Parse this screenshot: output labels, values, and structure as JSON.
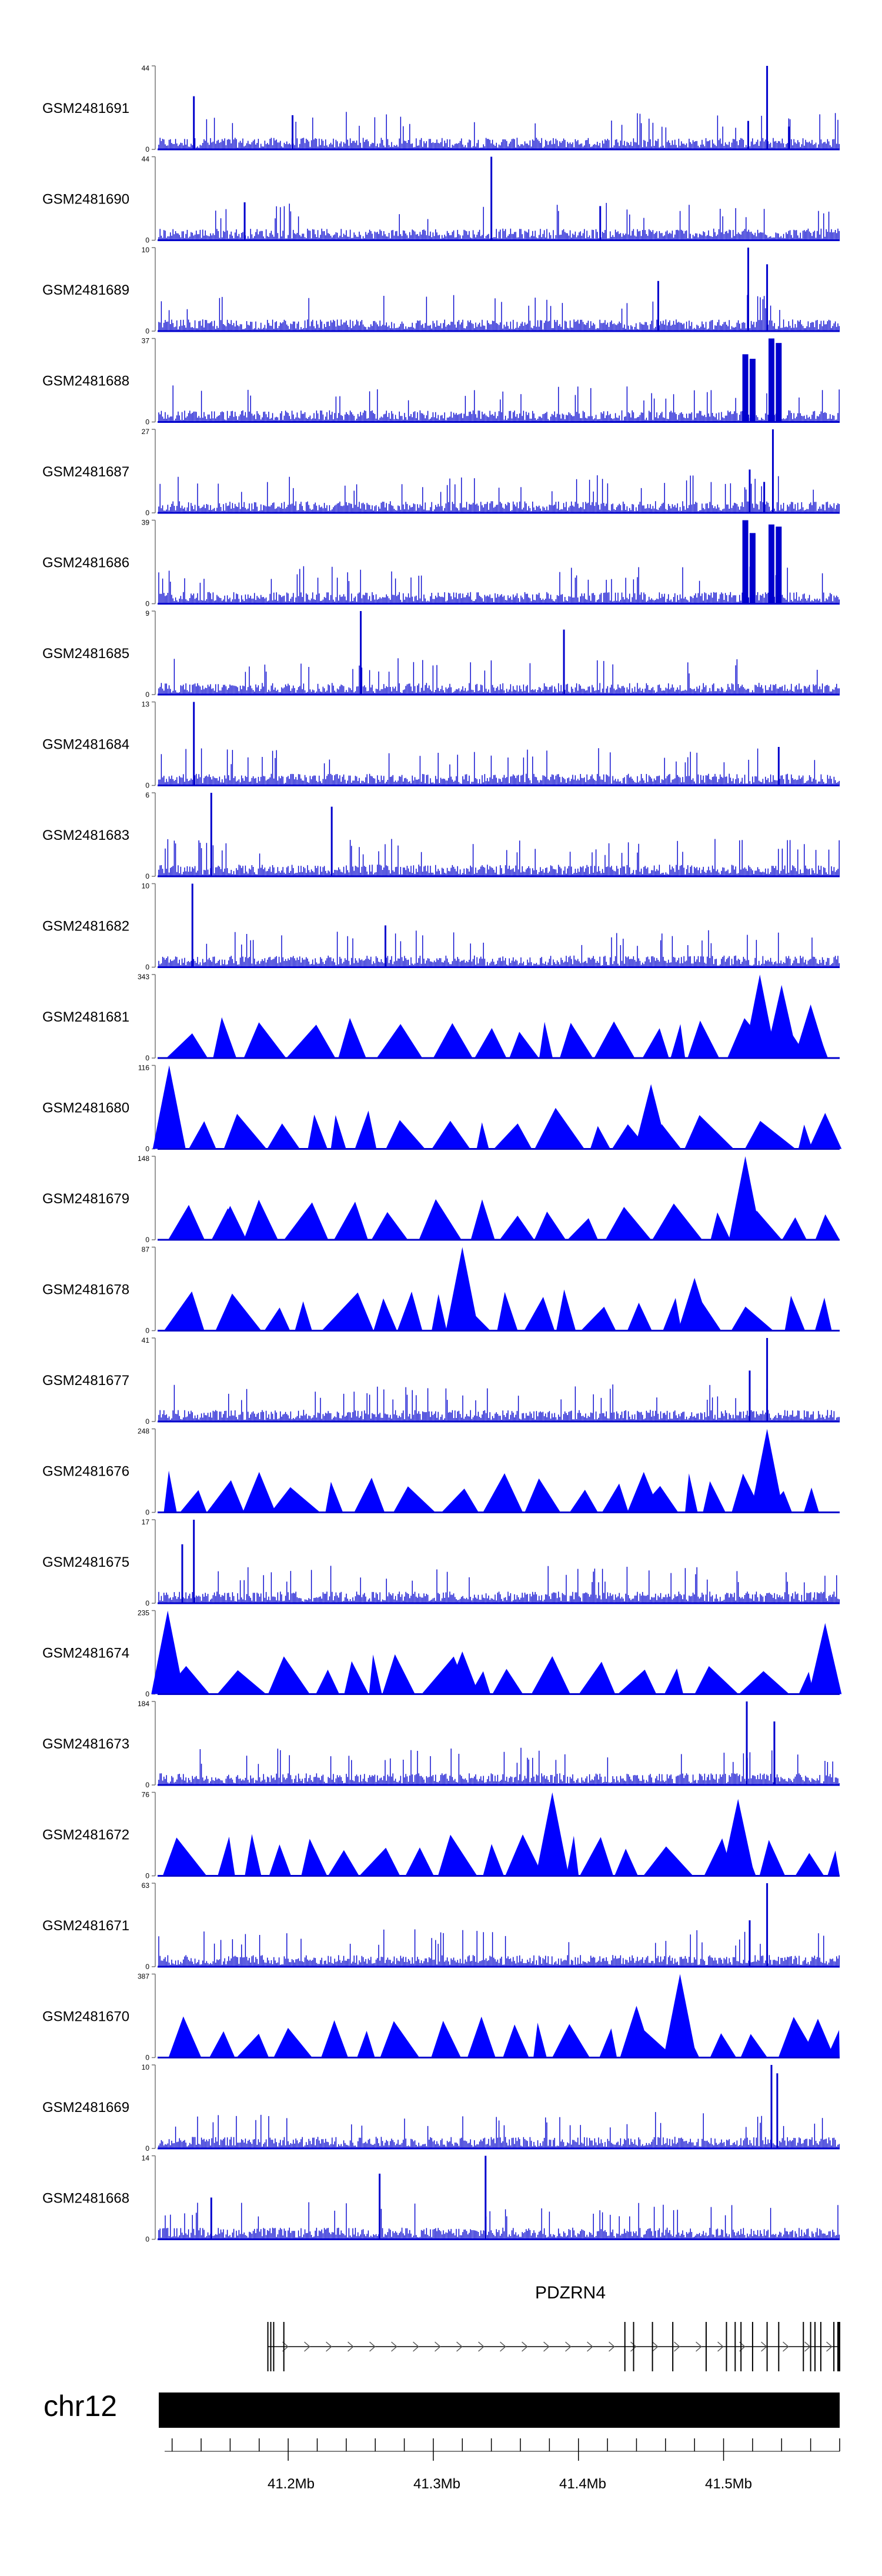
{
  "chart_data": {
    "type": "area",
    "title": "",
    "xlabel": "",
    "ylabel": "",
    "region": {
      "chromosome": "chr12",
      "start": 41110000,
      "end": 41580000
    },
    "tracks": [
      {
        "sample": "GSM2481691",
        "ymax": 44,
        "ymin": 0,
        "style": "bar",
        "peaks": [
          [
            41135000,
            28
          ],
          [
            41203000,
            18
          ],
          [
            41530000,
            44
          ],
          [
            41517000,
            15
          ],
          [
            41545000,
            12
          ]
        ]
      },
      {
        "sample": "GSM2481690",
        "ymax": 44,
        "ymin": 0,
        "style": "bar",
        "peaks": [
          [
            41340000,
            44
          ],
          [
            41170000,
            20
          ],
          [
            41415000,
            18
          ]
        ]
      },
      {
        "sample": "GSM2481689",
        "ymax": 10,
        "ymin": 0,
        "style": "bar",
        "peaks": [
          [
            41517000,
            10
          ],
          [
            41530000,
            8
          ],
          [
            41455000,
            6
          ]
        ]
      },
      {
        "sample": "GSM2481688",
        "ymax": 37,
        "ymin": 0,
        "style": "block",
        "peaks": [
          [
            41515000,
            30
          ],
          [
            41520000,
            28
          ],
          [
            41533000,
            37
          ],
          [
            41538000,
            35
          ]
        ]
      },
      {
        "sample": "GSM2481687",
        "ymax": 27,
        "ymin": 0,
        "style": "bar",
        "peaks": [
          [
            41534000,
            27
          ],
          [
            41518000,
            14
          ],
          [
            41528000,
            10
          ]
        ]
      },
      {
        "sample": "GSM2481686",
        "ymax": 39,
        "ymin": 0,
        "style": "block",
        "peaks": [
          [
            41515000,
            39
          ],
          [
            41520000,
            33
          ],
          [
            41533000,
            37
          ],
          [
            41538000,
            36
          ]
        ]
      },
      {
        "sample": "GSM2481685",
        "ymax": 9,
        "ymin": 0,
        "style": "bar",
        "peaks": [
          [
            41250000,
            9
          ],
          [
            41390000,
            7
          ]
        ]
      },
      {
        "sample": "GSM2481684",
        "ymax": 13,
        "ymin": 0,
        "style": "bar",
        "peaks": [
          [
            41135000,
            13
          ],
          [
            41538000,
            6
          ]
        ]
      },
      {
        "sample": "GSM2481683",
        "ymax": 6,
        "ymin": 0,
        "style": "bar",
        "peaks": [
          [
            41147000,
            6
          ],
          [
            41230000,
            5
          ]
        ]
      },
      {
        "sample": "GSM2481682",
        "ymax": 10,
        "ymin": 0,
        "style": "bar",
        "peaks": [
          [
            41134000,
            10
          ],
          [
            41267000,
            5
          ]
        ]
      },
      {
        "sample": "GSM2481681",
        "ymax": 343,
        "ymin": 0,
        "style": "triangle",
        "peaks": [
          [
            41525000,
            343
          ],
          [
            41540000,
            300
          ],
          [
            41560000,
            220
          ]
        ]
      },
      {
        "sample": "GSM2481680",
        "ymax": 116,
        "ymin": 0,
        "style": "triangle",
        "peaks": [
          [
            41118000,
            116
          ],
          [
            41450000,
            90
          ],
          [
            41570000,
            50
          ]
        ]
      },
      {
        "sample": "GSM2481679",
        "ymax": 148,
        "ymin": 0,
        "style": "triangle",
        "peaks": [
          [
            41515000,
            148
          ],
          [
            41160000,
            60
          ]
        ]
      },
      {
        "sample": "GSM2481678",
        "ymax": 87,
        "ymin": 0,
        "style": "triangle",
        "peaks": [
          [
            41320000,
            87
          ],
          [
            41480000,
            55
          ]
        ]
      },
      {
        "sample": "GSM2481677",
        "ymax": 41,
        "ymin": 0,
        "style": "bar",
        "peaks": [
          [
            41530000,
            41
          ],
          [
            41518000,
            25
          ]
        ]
      },
      {
        "sample": "GSM2481676",
        "ymax": 248,
        "ymin": 0,
        "style": "triangle",
        "peaks": [
          [
            41530000,
            248
          ],
          [
            41180000,
            120
          ],
          [
            41445000,
            120
          ]
        ]
      },
      {
        "sample": "GSM2481675",
        "ymax": 17,
        "ymin": 0,
        "style": "bar",
        "peaks": [
          [
            41135000,
            17
          ],
          [
            41127000,
            12
          ]
        ]
      },
      {
        "sample": "GSM2481674",
        "ymax": 235,
        "ymin": 0,
        "style": "triangle",
        "peaks": [
          [
            41117000,
            235
          ],
          [
            41570000,
            200
          ],
          [
            41320000,
            120
          ]
        ]
      },
      {
        "sample": "GSM2481673",
        "ymax": 184,
        "ymin": 0,
        "style": "bar",
        "peaks": [
          [
            41516000,
            184
          ],
          [
            41535000,
            140
          ]
        ]
      },
      {
        "sample": "GSM2481672",
        "ymax": 76,
        "ymin": 0,
        "style": "triangle",
        "peaks": [
          [
            41382000,
            76
          ],
          [
            41510000,
            70
          ]
        ]
      },
      {
        "sample": "GSM2481671",
        "ymax": 63,
        "ymin": 0,
        "style": "bar",
        "peaks": [
          [
            41530000,
            63
          ],
          [
            41518000,
            35
          ]
        ]
      },
      {
        "sample": "GSM2481670",
        "ymax": 387,
        "ymin": 0,
        "style": "triangle",
        "peaks": [
          [
            41470000,
            387
          ],
          [
            41440000,
            240
          ],
          [
            41565000,
            180
          ]
        ]
      },
      {
        "sample": "GSM2481669",
        "ymax": 10,
        "ymin": 0,
        "style": "bar",
        "peaks": [
          [
            41533000,
            10
          ],
          [
            41537000,
            9
          ]
        ]
      },
      {
        "sample": "GSM2481668",
        "ymax": 14,
        "ymin": 0,
        "style": "bar",
        "peaks": [
          [
            41336000,
            14
          ],
          [
            41263000,
            11
          ],
          [
            41147000,
            7
          ]
        ]
      }
    ],
    "gene": {
      "name": "PDZRN4",
      "strand": "+",
      "start": 41186000,
      "end": 41580000,
      "exons": [
        41186000,
        41188000,
        41190000,
        41197000,
        41432000,
        41438000,
        41451000,
        41465000,
        41488000,
        41502000,
        41508000,
        41512000,
        41520000,
        41530000,
        41538000,
        41555000,
        41560000,
        41563000,
        41567000,
        41576000,
        41579000
      ]
    },
    "axis": {
      "chromosome_label": "chr12",
      "tick_labels": [
        "41.2Mb",
        "41.3Mb",
        "41.4Mb",
        "41.5Mb"
      ],
      "tick_values": [
        41200000,
        41300000,
        41400000,
        41500000
      ],
      "minor_tick_step": 20000
    }
  },
  "colors": {
    "signal": "#0000cd",
    "triangle_fill": "#0000ff",
    "axis": "#000000",
    "ideogram": "#000000",
    "gene": "#000000"
  }
}
